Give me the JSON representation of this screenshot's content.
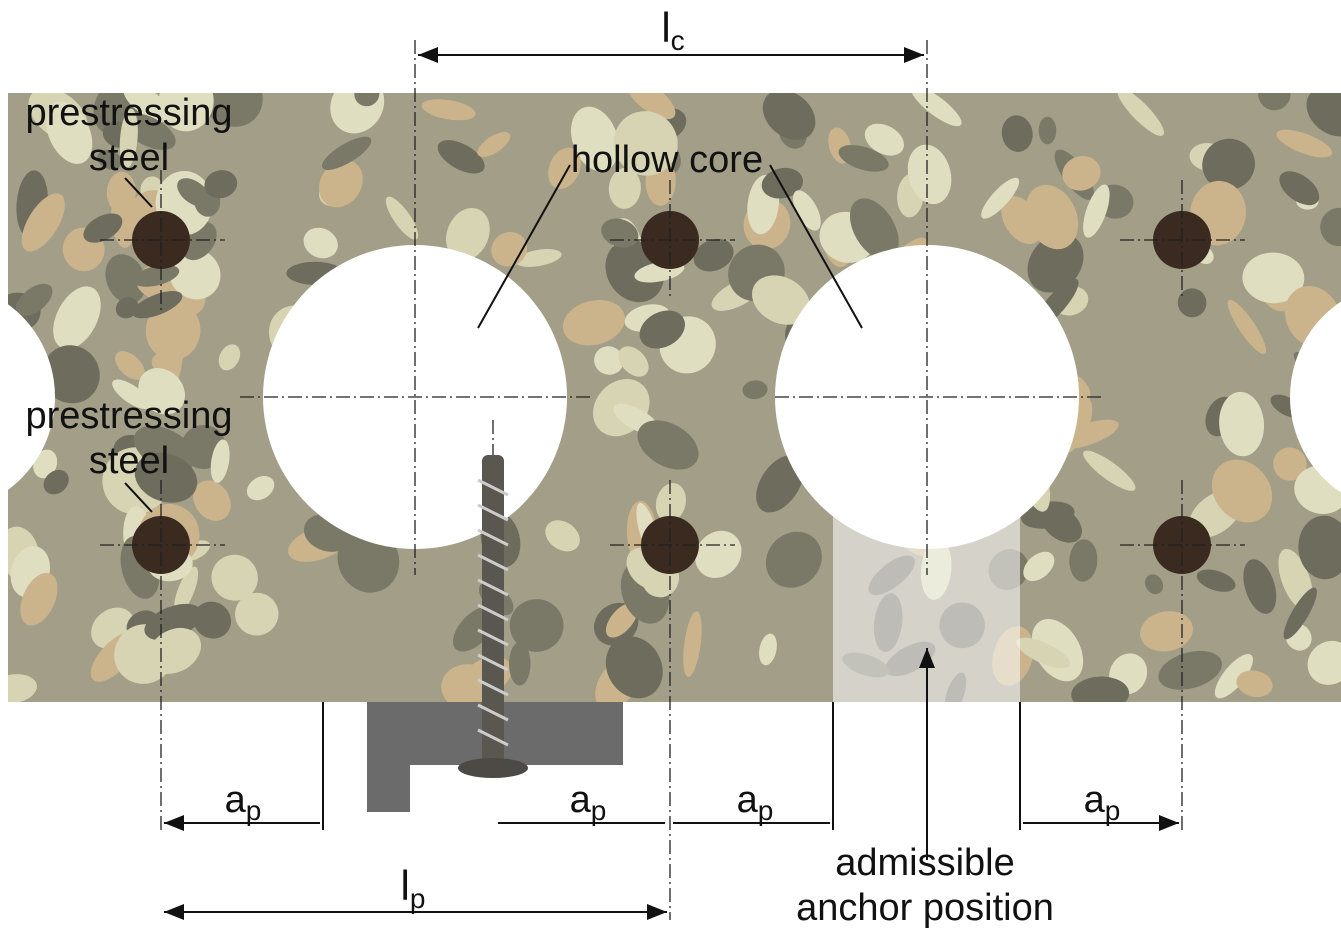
{
  "labels": {
    "prestressing_top": [
      "prestressing",
      "steel"
    ],
    "prestressing_bottom": [
      "prestressing",
      "steel"
    ],
    "hollow_core": "hollow core",
    "admissible": [
      "admissible",
      "anchor position"
    ]
  },
  "dimensions": {
    "lc": {
      "main": "l",
      "sub": "c"
    },
    "lp": {
      "main": "l",
      "sub": "p"
    },
    "ap": [
      {
        "main": "a",
        "sub": "p"
      },
      {
        "main": "a",
        "sub": "p"
      },
      {
        "main": "a",
        "sub": "p"
      },
      {
        "main": "a",
        "sub": "p"
      }
    ]
  }
}
